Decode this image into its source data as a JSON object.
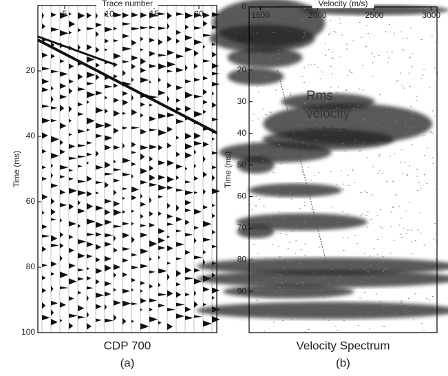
{
  "chart_data": [
    {
      "type": "seismic",
      "title": "Trace number",
      "y_label": "Time (ms)",
      "caption": "CDP 700",
      "panel": "(a)",
      "xlim": [
        2,
        22
      ],
      "xticks": [
        5,
        10,
        15,
        20
      ],
      "ylim": [
        0,
        100
      ],
      "yticks": [
        20,
        40,
        60,
        80,
        100
      ]
    },
    {
      "type": "velocity-spectrum",
      "title": "Velocity (m/s)",
      "y_label": "Time (ms)",
      "caption": "Velocity Spectrum",
      "panel": "(b)",
      "annotation": [
        "Rms",
        "velocity",
        "picking"
      ],
      "xlim": [
        1400,
        3050
      ],
      "xticks": [
        1500,
        2000,
        2500,
        3000
      ],
      "ylim": [
        0,
        103
      ],
      "yticks": [
        0,
        10,
        20,
        30,
        40,
        50,
        60,
        70,
        80,
        90
      ],
      "x": [
        1650,
        2150
      ],
      "values": [
        20,
        91
      ]
    }
  ]
}
